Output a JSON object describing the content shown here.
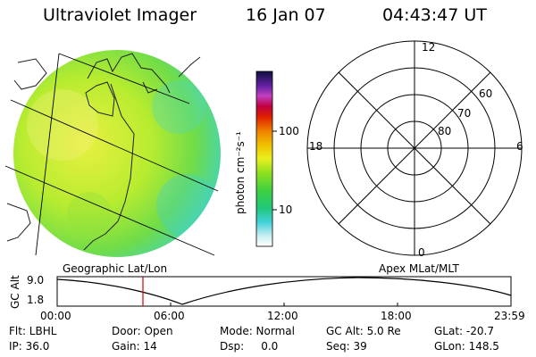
{
  "header": {
    "title": "Ultraviolet Imager",
    "date": "16 Jan 07",
    "time": "04:43:47 UT"
  },
  "colorbar": {
    "unit_label": "photon cm⁻²s⁻¹",
    "ticks": [
      "100",
      "10"
    ]
  },
  "polar": {
    "mlt_labels": {
      "top": "12",
      "right": "6",
      "bottom": "0",
      "left": "18"
    },
    "lat_labels": [
      "60",
      "70",
      "80"
    ]
  },
  "panels": {
    "left_caption": "Geographic Lat/Lon",
    "right_caption": "Apex MLat/MLT"
  },
  "altitude_plot": {
    "ylabel": "GC Alt",
    "ytick_top": "9.0",
    "ytick_bottom": "1.8",
    "xticks": [
      "00:00",
      "06:00",
      "12:00",
      "18:00",
      "23:59"
    ],
    "marker_color": "#e00000"
  },
  "info": {
    "row1": [
      "Flt: LBHL",
      "Door: Open",
      "Mode: Normal",
      "GC Alt: 5.0 Re",
      "GLat: -20.7"
    ],
    "row2": [
      "IP: 36.0",
      "Gain: 14",
      "Dsp:     0.0",
      "Seq: 39",
      "GLon: 148.5"
    ]
  }
}
